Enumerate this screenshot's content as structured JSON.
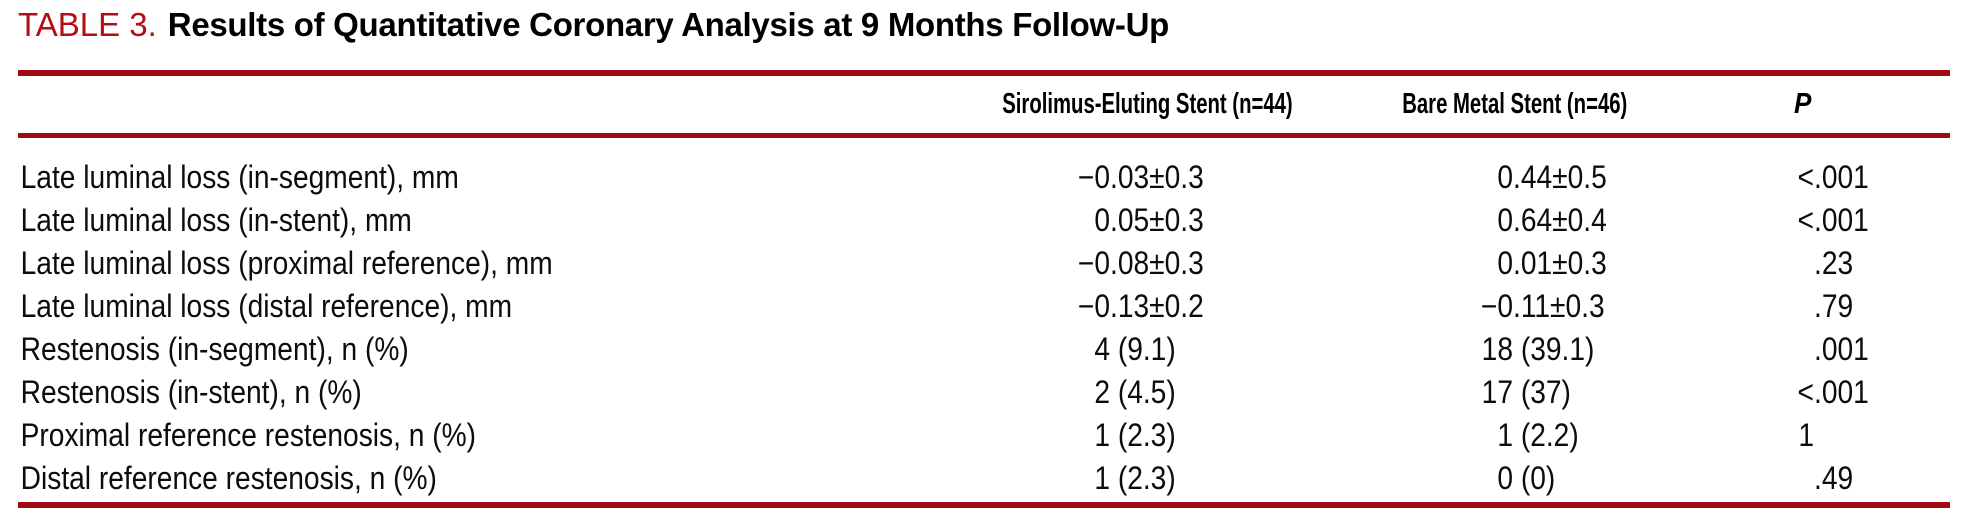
{
  "title": {
    "label": "TABLE 3.",
    "text": "Results of Quantitative Coronary Analysis at 9 Months Follow-Up"
  },
  "colors": {
    "title_red": "#b30d16",
    "rule_red": "#9e0b10"
  },
  "table": {
    "header": {
      "variable": "",
      "ses": "Sirolimus-Eluting Stent (n=44)",
      "bms": "Bare Metal Stent (n=46)",
      "p": "P"
    },
    "rows": [
      {
        "label": "Late luminal loss (in-segment), mm",
        "ses": "−0.03±0.3",
        "bms": "0.44±0.5",
        "p": "<.001"
      },
      {
        "label": "Late luminal loss (in-stent), mm",
        "ses": "0.05±0.3",
        "bms": "0.64±0.4",
        "p": "<.001"
      },
      {
        "label": "Late luminal loss (proximal reference), mm",
        "ses": "−0.08±0.3",
        "bms": "0.01±0.3",
        "p": ".23"
      },
      {
        "label": "Late luminal loss (distal reference), mm",
        "ses": "−0.13±0.2",
        "bms": "−0.11±0.3",
        "p": ".79"
      },
      {
        "label": "Restenosis (in-segment), n (%)",
        "ses": "4 (9.1)",
        "bms": "18 (39.1)",
        "p": ".001"
      },
      {
        "label": "Restenosis (in-stent), n (%)",
        "ses": "2 (4.5)",
        "bms": "17 (37)",
        "p": "<.001"
      },
      {
        "label": "Proximal reference restenosis, n (%)",
        "ses": "1 (2.3)",
        "bms": "1 (2.2)",
        "p": "1"
      },
      {
        "label": "Distal reference restenosis, n (%)",
        "ses": "1 (2.3)",
        "bms": "0 (0)",
        "p": ".49"
      }
    ]
  }
}
